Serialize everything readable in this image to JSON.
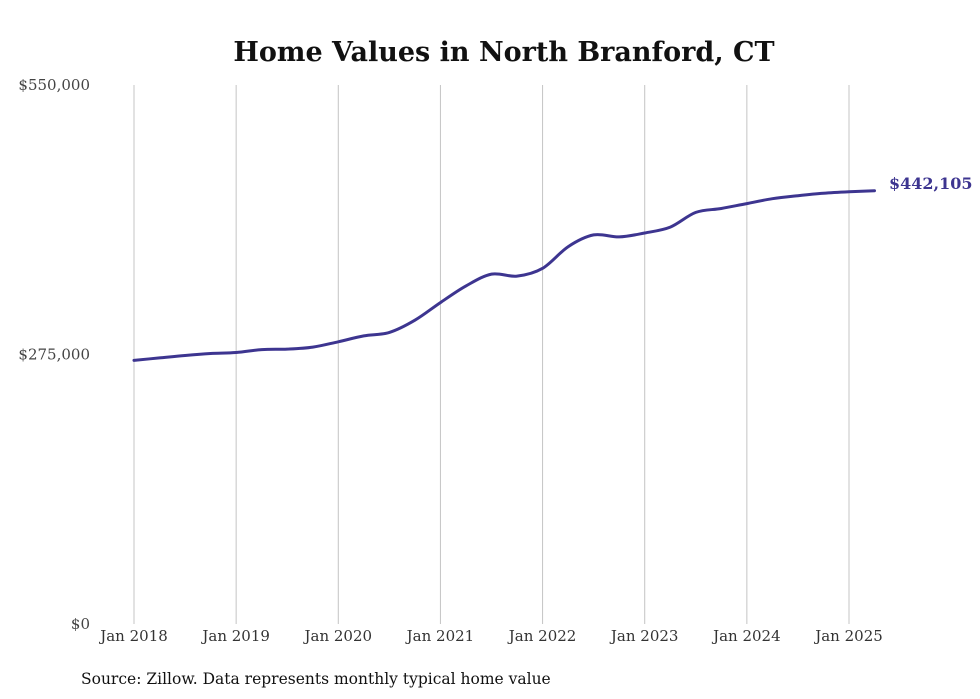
{
  "chart_data": {
    "type": "line",
    "title": "Home Values in North Branford, CT",
    "source": "Source: Zillow. Data represents monthly typical home value",
    "line_color": "#3d3590",
    "grid": true,
    "ylim": [
      0,
      550000
    ],
    "yticks": [
      {
        "value": 0,
        "label": "$0"
      },
      {
        "value": 275000,
        "label": "$275,000"
      },
      {
        "value": 550000,
        "label": "$550,000"
      }
    ],
    "xlim": [
      2018.0,
      2025.25
    ],
    "xticks": [
      {
        "value": 2018,
        "label": "Jan 2018"
      },
      {
        "value": 2019,
        "label": "Jan 2019"
      },
      {
        "value": 2020,
        "label": "Jan 2020"
      },
      {
        "value": 2021,
        "label": "Jan 2021"
      },
      {
        "value": 2022,
        "label": "Jan 2022"
      },
      {
        "value": 2023,
        "label": "Jan 2023"
      },
      {
        "value": 2024,
        "label": "Jan 2024"
      },
      {
        "value": 2025,
        "label": "Jan 2025"
      }
    ],
    "end_label": "$442,105",
    "series": [
      {
        "x": [
          2018.0,
          2018.25,
          2018.5,
          2018.75,
          2019.0,
          2019.25,
          2019.5,
          2019.75,
          2020.0,
          2020.25,
          2020.5,
          2020.75,
          2021.0,
          2021.25,
          2021.5,
          2021.75,
          2022.0,
          2022.25,
          2022.5,
          2022.75,
          2023.0,
          2023.25,
          2023.5,
          2023.75,
          2024.0,
          2024.25,
          2024.5,
          2024.75,
          2025.0,
          2025.25
        ],
        "values": [
          269000,
          271500,
          274000,
          276000,
          277000,
          280000,
          280500,
          282500,
          288000,
          294000,
          297500,
          310000,
          328000,
          345000,
          357000,
          355000,
          363000,
          385000,
          397000,
          395000,
          399000,
          405000,
          420000,
          424000,
          429000,
          434000,
          437000,
          439500,
          441000,
          442105
        ]
      }
    ]
  }
}
